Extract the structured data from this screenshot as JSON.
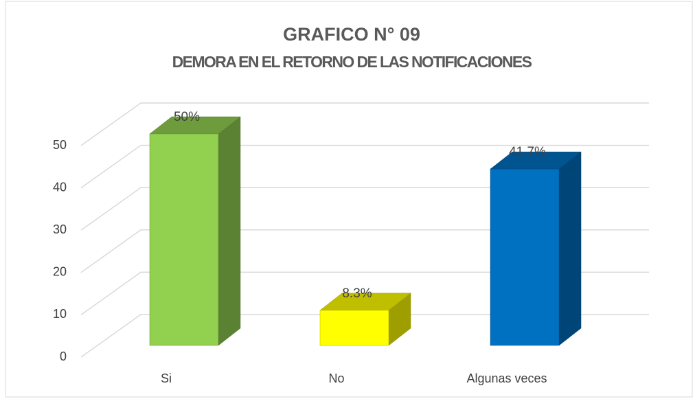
{
  "chart_data": {
    "type": "bar3d",
    "title": "GRAFICO N° 09",
    "subtitle": "DEMORA EN EL RETORNO DE LAS NOTIFICACIONES",
    "categories": [
      "Si",
      "No",
      "Algunas veces"
    ],
    "values": [
      50,
      8.3,
      41.7
    ],
    "value_labels": [
      "50%",
      "8.3%",
      "41.7%"
    ],
    "colors": [
      "#92d050",
      "#ffff00",
      "#0070c0"
    ],
    "ylim": [
      0,
      50
    ],
    "yticks": [
      0,
      10,
      20,
      30,
      40,
      50
    ],
    "grid": true
  }
}
